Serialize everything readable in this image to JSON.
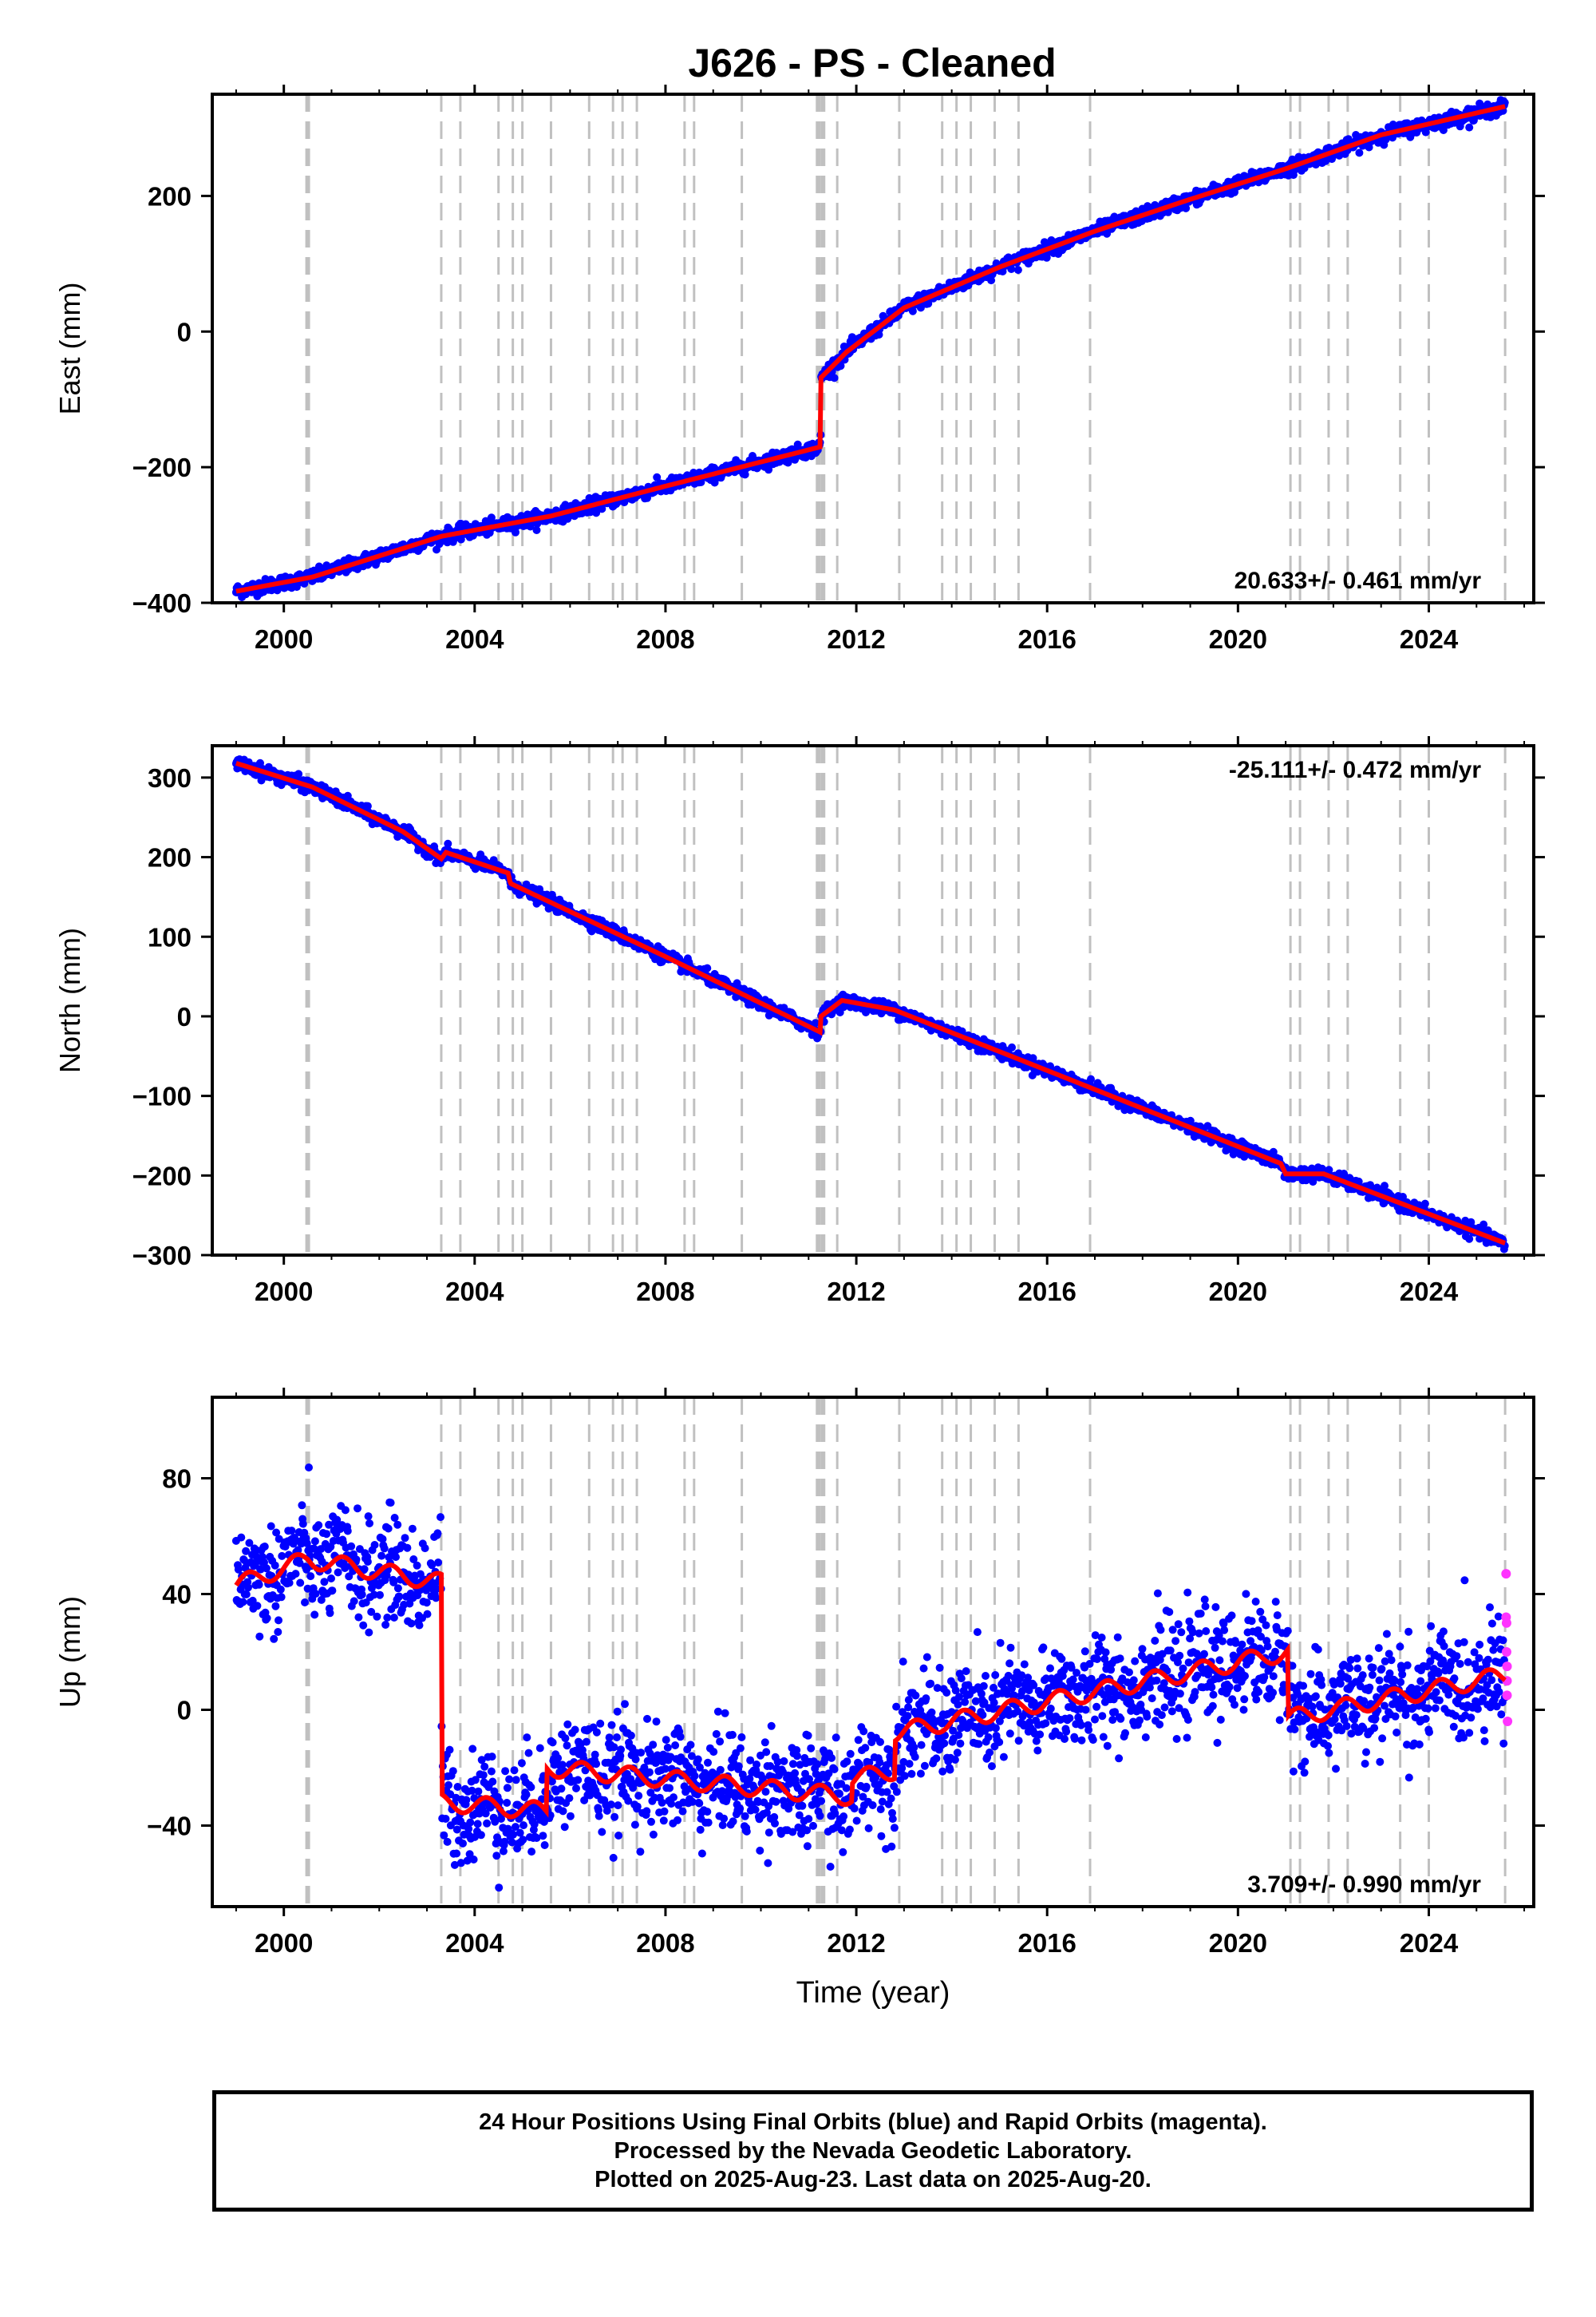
{
  "title": "J626  - PS - Cleaned",
  "colors": {
    "final_orbits": "#0000ff",
    "rapid_orbits": "#ff33ff",
    "model": "#ff0000",
    "events": "#c0c0c0"
  },
  "chart_data": [
    {
      "type": "scatter",
      "panel": "east",
      "ylabel": "East (mm)",
      "xlim": [
        1998.5,
        2026.2
      ],
      "ylim": [
        -400,
        350
      ],
      "xticks": [
        2000,
        2004,
        2008,
        2012,
        2016,
        2020,
        2024
      ],
      "yticks": [
        -400,
        -200,
        0,
        200
      ],
      "rate_label": "20.633+/- 0.461 mm/yr",
      "rate_position": "bottom-right",
      "model": {
        "x": [
          1999.0,
          2000.6,
          2003.3,
          2005.6,
          2008.0,
          2011.25,
          2011.26,
          2011.8,
          2013.0,
          2015.0,
          2017.0,
          2019.0,
          2021.0,
          2023.0,
          2025.6
        ],
        "y": [
          -383,
          -362,
          -302,
          -272,
          -228,
          -170,
          -68,
          -30,
          35,
          95,
          148,
          195,
          240,
          290,
          332
        ]
      },
      "noise": 5
    },
    {
      "type": "scatter",
      "panel": "north",
      "ylabel": "North (mm)",
      "xlim": [
        1998.5,
        2026.2
      ],
      "ylim": [
        -300,
        340
      ],
      "xticks": [
        2000,
        2004,
        2008,
        2012,
        2016,
        2020,
        2024
      ],
      "yticks": [
        -300,
        -200,
        -100,
        0,
        100,
        200,
        300
      ],
      "rate_label": "-25.111+/- 0.472 mm/yr",
      "rate_position": "top-right",
      "model": {
        "x": [
          1999.0,
          2000.6,
          2002.5,
          2003.3,
          2003.4,
          2004.7,
          2004.75,
          2008.0,
          2011.25,
          2011.26,
          2011.7,
          2012.8,
          2016.0,
          2020.9,
          2021.0,
          2021.8,
          2025.6
        ],
        "y": [
          318,
          288,
          232,
          198,
          206,
          180,
          167,
          75,
          -20,
          0,
          20,
          8,
          -68,
          -185,
          -198,
          -198,
          -285
        ]
      },
      "noise": 4
    },
    {
      "type": "scatter",
      "panel": "up",
      "ylabel": "Up (mm)",
      "xlabel": "Time (year)",
      "xlim": [
        1998.5,
        2026.2
      ],
      "ylim": [
        -68,
        108
      ],
      "xticks": [
        2000,
        2004,
        2008,
        2012,
        2016,
        2020,
        2024
      ],
      "yticks": [
        -40,
        0,
        40,
        80
      ],
      "rate_label": "3.709+/- 0.990 mm/yr",
      "rate_position": "bottom-right",
      "model": {
        "x": [
          1999.0,
          2000.5,
          2003.3,
          2003.31,
          2005.5,
          2005.51,
          2011.9,
          2011.91,
          2012.8,
          2012.81,
          2021.05,
          2021.06,
          2025.6
        ],
        "y": [
          43,
          52,
          44,
          -32,
          -35,
          -20,
          -30,
          -24,
          -21,
          -8,
          20,
          -3,
          12
        ]
      },
      "noise": 9,
      "rapid_points": {
        "x": [
          2025.62,
          2025.62,
          2025.63,
          2025.63,
          2025.64,
          2025.64,
          2025.64,
          2025.65
        ],
        "y": [
          47,
          32,
          30,
          20,
          15,
          10,
          5,
          -4
        ]
      }
    }
  ],
  "event_lines": [
    2000.5,
    2003.3,
    2003.7,
    2004.5,
    2004.8,
    2005.0,
    2005.6,
    2006.4,
    2006.9,
    2007.1,
    2007.4,
    2008.4,
    2008.6,
    2009.6,
    2011.2,
    2011.3,
    2011.6,
    2012.9,
    2013.8,
    2014.1,
    2014.4,
    2014.9,
    2015.4,
    2016.9,
    2021.1,
    2021.3,
    2021.9,
    2022.3,
    2023.4,
    2024.0,
    2025.6
  ],
  "caption": {
    "line1": "24 Hour Positions Using Final Orbits (blue) and Rapid Orbits (magenta).",
    "line2": "Processed by the Nevada Geodetic Laboratory.",
    "line3": "Plotted on 2025-Aug-23. Last data on 2025-Aug-20."
  }
}
